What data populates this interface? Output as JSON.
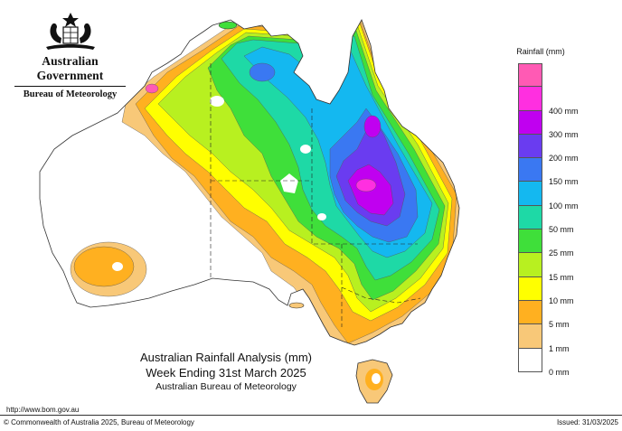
{
  "header": {
    "government": "Australian Government",
    "bureau": "Bureau of Meteorology"
  },
  "title": {
    "line1": "Australian Rainfall Analysis (mm)",
    "line2": "Week Ending 31st March 2025",
    "line3": "Australian Bureau of Meteorology"
  },
  "url": "http://www.bom.gov.au",
  "copyright": "© Commonwealth of Australia 2025, Bureau of Meteorology",
  "issued": "Issued: 31/03/2025",
  "legend": {
    "title": "Rainfall (mm)",
    "items": [
      {
        "label": "",
        "color": "#ff5ab4"
      },
      {
        "label": "400 mm",
        "color": "#ff2fe0"
      },
      {
        "label": "300 mm",
        "color": "#c000f0"
      },
      {
        "label": "200 mm",
        "color": "#6a3cf0"
      },
      {
        "label": "150 mm",
        "color": "#3a78f2"
      },
      {
        "label": "100 mm",
        "color": "#14b8f0"
      },
      {
        "label": "50 mm",
        "color": "#1ed9a6"
      },
      {
        "label": "25 mm",
        "color": "#3fdf3a"
      },
      {
        "label": "15 mm",
        "color": "#b8f020"
      },
      {
        "label": "10 mm",
        "color": "#ffff00"
      },
      {
        "label": "5 mm",
        "color": "#ffb020"
      },
      {
        "label": "1 mm",
        "color": "#f8c878"
      },
      {
        "label": "0 mm",
        "color": "#ffffff"
      }
    ]
  },
  "map": {
    "colors": {
      "c1": "#f8c878",
      "c5": "#ffb020",
      "c10": "#ffff00",
      "c15": "#b8f020",
      "c25": "#3fdf3a",
      "c50": "#1ed9a6",
      "c100": "#14b8f0",
      "c150": "#3a78f2",
      "c200": "#6a3cf0",
      "c300": "#c000f0",
      "c400": "#ff2fe0",
      "cmax": "#ff5ab4"
    }
  }
}
